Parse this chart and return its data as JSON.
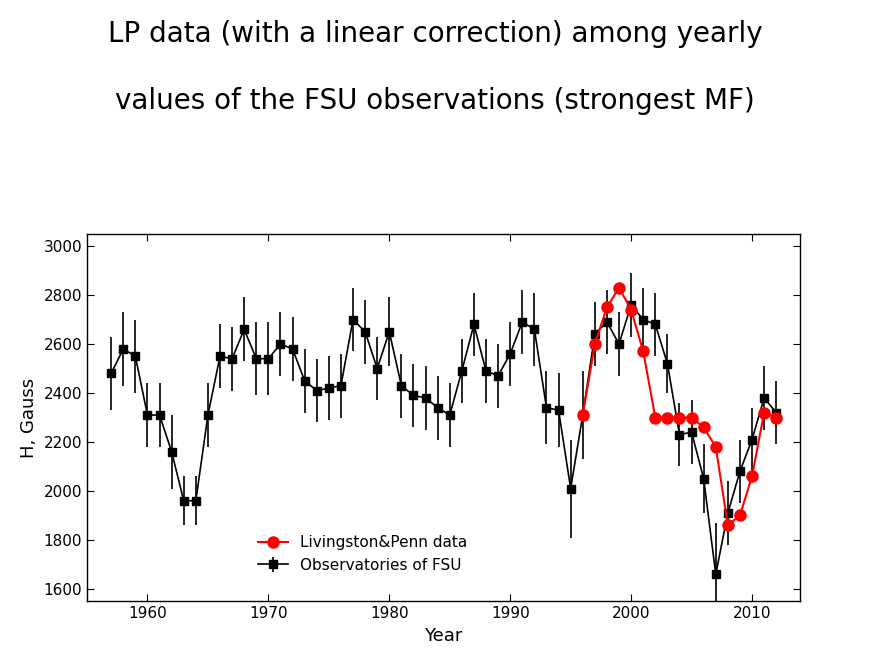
{
  "title_line1": "LP data (with a linear correction) among yearly",
  "title_line2": "values of the FSU observations (strongest MF)",
  "xlabel": "Year",
  "ylabel": "H, Gauss",
  "xlim": [
    1955,
    2014
  ],
  "ylim": [
    1550,
    3050
  ],
  "yticks": [
    1600,
    1800,
    2000,
    2200,
    2400,
    2600,
    2800,
    3000
  ],
  "xticks": [
    1960,
    1970,
    1980,
    1990,
    2000,
    2010
  ],
  "fsu_years": [
    1957,
    1958,
    1959,
    1960,
    1961,
    1962,
    1963,
    1964,
    1965,
    1966,
    1967,
    1968,
    1969,
    1970,
    1971,
    1972,
    1973,
    1974,
    1975,
    1976,
    1977,
    1978,
    1979,
    1980,
    1981,
    1982,
    1983,
    1984,
    1985,
    1986,
    1987,
    1988,
    1989,
    1990,
    1991,
    1992,
    1993,
    1994,
    1995,
    1996,
    1997,
    1998,
    1999,
    2000,
    2001,
    2002,
    2003,
    2004,
    2005,
    2006,
    2007,
    2008,
    2009,
    2010,
    2011,
    2012
  ],
  "fsu_values": [
    2480,
    2580,
    2550,
    2310,
    2310,
    2160,
    1960,
    1960,
    2310,
    2550,
    2540,
    2660,
    2540,
    2540,
    2600,
    2580,
    2450,
    2410,
    2420,
    2430,
    2700,
    2650,
    2500,
    2650,
    2430,
    2390,
    2380,
    2340,
    2310,
    2490,
    2680,
    2490,
    2470,
    2560,
    2690,
    2660,
    2340,
    2330,
    2010,
    2310,
    2640,
    2690,
    2600,
    2760,
    2700,
    2680,
    2520,
    2230,
    2240,
    2050,
    1660,
    1910,
    2080,
    2210,
    2380,
    2320
  ],
  "fsu_yerr": [
    150,
    150,
    150,
    130,
    130,
    150,
    100,
    100,
    130,
    130,
    130,
    130,
    150,
    150,
    130,
    130,
    130,
    130,
    130,
    130,
    130,
    130,
    130,
    140,
    130,
    130,
    130,
    130,
    130,
    130,
    130,
    130,
    130,
    130,
    130,
    150,
    150,
    150,
    200,
    180,
    130,
    130,
    130,
    130,
    130,
    130,
    120,
    130,
    130,
    140,
    210,
    130,
    130,
    130,
    130,
    130
  ],
  "lp_years": [
    1996,
    1997,
    1998,
    1999,
    2000,
    2001,
    2002,
    2003,
    2004,
    2005,
    2006,
    2007,
    2008,
    2009,
    2010,
    2011,
    2012
  ],
  "lp_values": [
    2310,
    2600,
    2750,
    2830,
    2740,
    2570,
    2300,
    2300,
    2300,
    2300,
    2260,
    2180,
    1860,
    1900,
    2060,
    2320,
    2300
  ],
  "background_color": "#ffffff",
  "fsu_color": "#000000",
  "lp_color": "#ff0000",
  "title_fontsize": 20,
  "axis_fontsize": 13,
  "tick_fontsize": 11,
  "legend_fontsize": 11
}
